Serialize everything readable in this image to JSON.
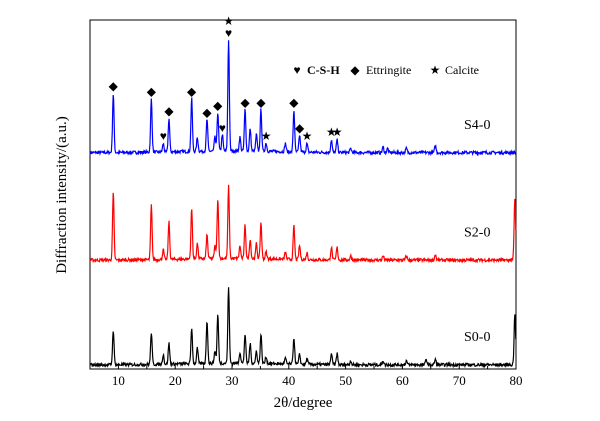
{
  "chart_data": {
    "type": "line",
    "title": "",
    "xlabel": "2θ/degree",
    "ylabel": "Diffraction intensity/(a.u.)",
    "xlim": [
      5,
      80
    ],
    "xticks": [
      10,
      20,
      30,
      40,
      50,
      60,
      70,
      80
    ],
    "yticks": [],
    "grid": false,
    "legend": {
      "placement": "top-right",
      "items": [
        {
          "symbol": "heart",
          "glyph": "♥",
          "label": "C-S-H"
        },
        {
          "symbol": "diamond",
          "glyph": "◆",
          "label": "Ettringite"
        },
        {
          "symbol": "star",
          "glyph": "★",
          "label": "Calcite"
        }
      ]
    },
    "series": [
      {
        "name": "S4-0",
        "color": "#0000ff",
        "baseline": 1.55,
        "peaks": [
          {
            "x": 9.1,
            "h": 0.42
          },
          {
            "x": 15.8,
            "h": 0.38
          },
          {
            "x": 17.9,
            "h": 0.06
          },
          {
            "x": 18.9,
            "h": 0.24
          },
          {
            "x": 22.9,
            "h": 0.38
          },
          {
            "x": 23.9,
            "h": 0.1
          },
          {
            "x": 25.6,
            "h": 0.23
          },
          {
            "x": 27.0,
            "h": 0.1
          },
          {
            "x": 27.5,
            "h": 0.28
          },
          {
            "x": 28.3,
            "h": 0.12
          },
          {
            "x": 29.4,
            "h": 0.8
          },
          {
            "x": 31.4,
            "h": 0.1
          },
          {
            "x": 32.3,
            "h": 0.3
          },
          {
            "x": 33.2,
            "h": 0.16
          },
          {
            "x": 34.3,
            "h": 0.12
          },
          {
            "x": 35.1,
            "h": 0.3
          },
          {
            "x": 36.0,
            "h": 0.06
          },
          {
            "x": 39.4,
            "h": 0.06
          },
          {
            "x": 40.9,
            "h": 0.3
          },
          {
            "x": 41.9,
            "h": 0.12
          },
          {
            "x": 43.2,
            "h": 0.06
          },
          {
            "x": 47.5,
            "h": 0.09
          },
          {
            "x": 48.5,
            "h": 0.09
          },
          {
            "x": 50.9,
            "h": 0.03
          },
          {
            "x": 56.6,
            "h": 0.04
          },
          {
            "x": 57.4,
            "h": 0.03
          },
          {
            "x": 60.7,
            "h": 0.03
          },
          {
            "x": 65.8,
            "h": 0.05
          }
        ],
        "markers": [
          {
            "symbol": "diamond",
            "x": 9.1
          },
          {
            "symbol": "diamond",
            "x": 15.8
          },
          {
            "symbol": "heart",
            "x": 17.9
          },
          {
            "symbol": "diamond",
            "x": 18.9
          },
          {
            "symbol": "diamond",
            "x": 22.9
          },
          {
            "symbol": "diamond",
            "x": 25.6
          },
          {
            "symbol": "diamond",
            "x": 27.5
          },
          {
            "symbol": "heart",
            "x": 28.3
          },
          {
            "symbol": "heart",
            "x": 29.4
          },
          {
            "symbol": "star",
            "x": 29.4
          },
          {
            "symbol": "diamond",
            "x": 32.3
          },
          {
            "symbol": "diamond",
            "x": 35.1
          },
          {
            "symbol": "star",
            "x": 36.0
          },
          {
            "symbol": "diamond",
            "x": 40.9
          },
          {
            "symbol": "diamond",
            "x": 41.9
          },
          {
            "symbol": "star",
            "x": 43.2
          },
          {
            "symbol": "star",
            "x": 47.5
          },
          {
            "symbol": "star",
            "x": 48.5
          }
        ]
      },
      {
        "name": "S2-0",
        "color": "#ff0000",
        "baseline": 0.78,
        "peaks": [
          {
            "x": 9.1,
            "h": 0.48
          },
          {
            "x": 15.8,
            "h": 0.39
          },
          {
            "x": 17.9,
            "h": 0.07
          },
          {
            "x": 18.9,
            "h": 0.27
          },
          {
            "x": 22.9,
            "h": 0.36
          },
          {
            "x": 23.9,
            "h": 0.11
          },
          {
            "x": 25.6,
            "h": 0.17
          },
          {
            "x": 27.0,
            "h": 0.09
          },
          {
            "x": 27.5,
            "h": 0.43
          },
          {
            "x": 29.4,
            "h": 0.52
          },
          {
            "x": 31.4,
            "h": 0.09
          },
          {
            "x": 32.3,
            "h": 0.24
          },
          {
            "x": 33.2,
            "h": 0.14
          },
          {
            "x": 34.3,
            "h": 0.11
          },
          {
            "x": 35.1,
            "h": 0.26
          },
          {
            "x": 36.0,
            "h": 0.05
          },
          {
            "x": 39.4,
            "h": 0.05
          },
          {
            "x": 40.9,
            "h": 0.24
          },
          {
            "x": 41.9,
            "h": 0.1
          },
          {
            "x": 43.2,
            "h": 0.05
          },
          {
            "x": 47.5,
            "h": 0.09
          },
          {
            "x": 48.5,
            "h": 0.09
          },
          {
            "x": 50.9,
            "h": 0.03
          },
          {
            "x": 56.6,
            "h": 0.03
          },
          {
            "x": 60.7,
            "h": 0.03
          },
          {
            "x": 65.8,
            "h": 0.04
          },
          {
            "x": 79.8,
            "h": 0.44
          }
        ]
      },
      {
        "name": "S0-0",
        "color": "#000000",
        "baseline": 0.03,
        "peaks": [
          {
            "x": 9.1,
            "h": 0.25
          },
          {
            "x": 15.8,
            "h": 0.23
          },
          {
            "x": 17.9,
            "h": 0.07
          },
          {
            "x": 18.9,
            "h": 0.15
          },
          {
            "x": 22.9,
            "h": 0.26
          },
          {
            "x": 23.9,
            "h": 0.11
          },
          {
            "x": 25.6,
            "h": 0.31
          },
          {
            "x": 27.0,
            "h": 0.09
          },
          {
            "x": 27.5,
            "h": 0.35
          },
          {
            "x": 29.4,
            "h": 0.55
          },
          {
            "x": 31.4,
            "h": 0.08
          },
          {
            "x": 32.3,
            "h": 0.21
          },
          {
            "x": 33.2,
            "h": 0.14
          },
          {
            "x": 34.3,
            "h": 0.09
          },
          {
            "x": 35.1,
            "h": 0.21
          },
          {
            "x": 36.0,
            "h": 0.05
          },
          {
            "x": 39.4,
            "h": 0.04
          },
          {
            "x": 40.9,
            "h": 0.19
          },
          {
            "x": 41.9,
            "h": 0.07
          },
          {
            "x": 43.2,
            "h": 0.04
          },
          {
            "x": 47.5,
            "h": 0.08
          },
          {
            "x": 48.5,
            "h": 0.08
          },
          {
            "x": 50.9,
            "h": 0.03
          },
          {
            "x": 56.6,
            "h": 0.03
          },
          {
            "x": 60.7,
            "h": 0.03
          },
          {
            "x": 64.2,
            "h": 0.04
          },
          {
            "x": 65.8,
            "h": 0.04
          },
          {
            "x": 79.8,
            "h": 0.37
          }
        ]
      }
    ]
  }
}
